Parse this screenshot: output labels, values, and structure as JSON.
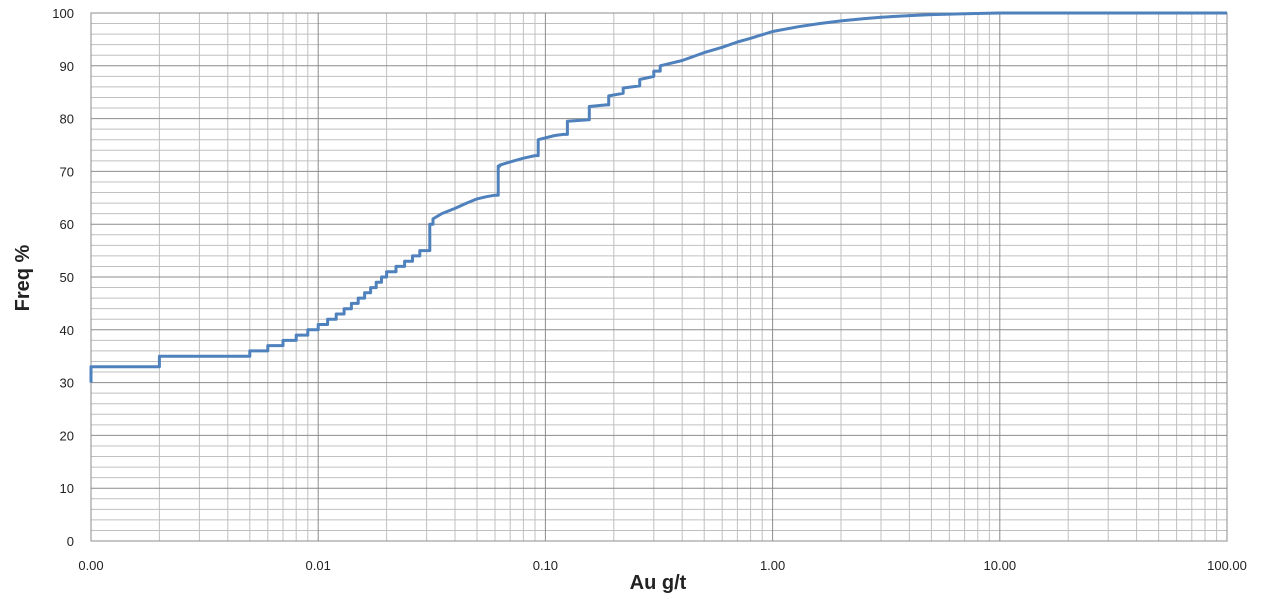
{
  "chart_data": {
    "type": "line",
    "title": "",
    "xlabel": "Au g/t",
    "ylabel": "Freq %",
    "x_scale": "log",
    "xlim": [
      0.001,
      100
    ],
    "ylim": [
      0,
      100
    ],
    "grid": true,
    "legend": "none",
    "line_color": "#4f81bd",
    "grid_color_major": "#8c8c8c",
    "grid_color_minor": "#c0c0c0",
    "x_tick_labels": [
      "0.00",
      "0.01",
      "0.10",
      "1.00",
      "10.00",
      "100.00"
    ],
    "y_tick_labels": [
      "0",
      "10",
      "20",
      "30",
      "40",
      "50",
      "60",
      "70",
      "80",
      "90",
      "100"
    ],
    "series": [
      {
        "x": [
          0.001,
          0.001,
          0.002,
          0.002,
          0.005,
          0.005,
          0.006,
          0.006,
          0.007,
          0.007,
          0.008,
          0.008,
          0.009,
          0.009,
          0.01,
          0.01,
          0.011,
          0.011,
          0.012,
          0.012,
          0.013,
          0.013,
          0.014,
          0.014,
          0.015,
          0.015,
          0.016,
          0.016,
          0.017,
          0.017,
          0.018,
          0.018,
          0.019,
          0.019,
          0.02,
          0.02,
          0.022,
          0.022,
          0.024,
          0.024,
          0.026,
          0.026,
          0.028,
          0.028,
          0.03,
          0.03,
          0.031,
          0.031,
          0.032,
          0.032,
          0.035,
          0.04,
          0.045,
          0.05,
          0.055,
          0.06,
          0.062,
          0.062,
          0.063,
          0.063,
          0.07,
          0.08,
          0.09,
          0.093,
          0.093,
          0.11,
          0.12,
          0.125,
          0.125,
          0.155,
          0.156,
          0.156,
          0.185,
          0.19,
          0.19,
          0.22,
          0.22,
          0.26,
          0.26,
          0.3,
          0.3,
          0.32,
          0.32,
          0.4,
          0.5,
          0.6,
          0.7,
          0.8,
          1.0,
          1.3,
          1.6,
          2.0,
          2.5,
          3.0,
          4.0,
          5.0,
          7.0,
          10.0,
          100.0
        ],
        "y": [
          30,
          33,
          33,
          35,
          35,
          36,
          36,
          37,
          37,
          38,
          38,
          39,
          39,
          40,
          40,
          41,
          41,
          42,
          42,
          43,
          43,
          44,
          44,
          45,
          45,
          46,
          46,
          47,
          47,
          48,
          48,
          49,
          49,
          50,
          50,
          51,
          51,
          52,
          52,
          53,
          53,
          54,
          54,
          55,
          55,
          55,
          55,
          60,
          60,
          61,
          62,
          63,
          64,
          64.8,
          65.2,
          65.5,
          65.5,
          71,
          71,
          71.2,
          71.8,
          72.5,
          73,
          73,
          76,
          76.8,
          77,
          77,
          79.5,
          79.8,
          79.8,
          82.3,
          82.6,
          82.6,
          84.3,
          84.8,
          85.8,
          86.2,
          87.4,
          88,
          89,
          89,
          90,
          91,
          92.5,
          93.5,
          94.5,
          95.2,
          96.5,
          97.4,
          98,
          98.5,
          98.9,
          99.2,
          99.5,
          99.7,
          99.85,
          100,
          100
        ]
      }
    ]
  }
}
